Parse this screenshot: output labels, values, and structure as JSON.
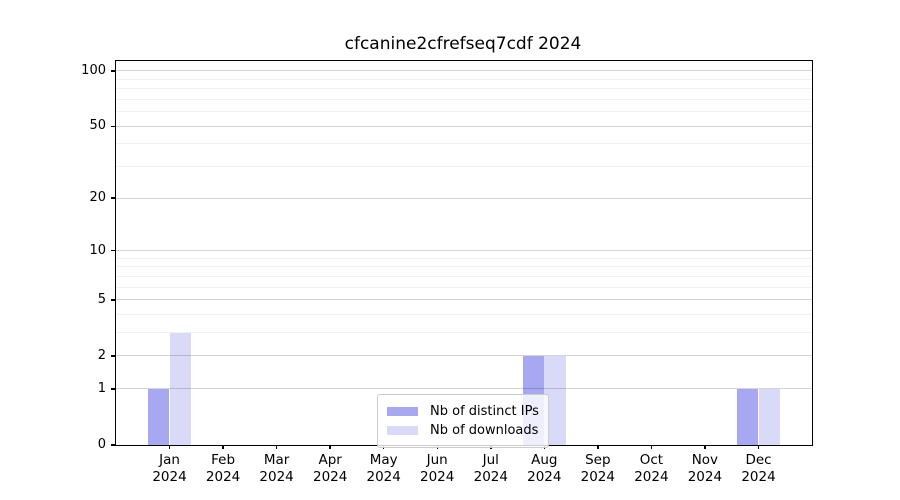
{
  "chart_data": {
    "type": "bar",
    "title": "cfcanine2cfrefseq7cdf 2024",
    "categories": [
      "Jan",
      "Feb",
      "Mar",
      "Apr",
      "May",
      "Jun",
      "Jul",
      "Aug",
      "Sep",
      "Oct",
      "Nov",
      "Dec"
    ],
    "x_year_label": "2024",
    "series": [
      {
        "name": "Nb of distinct IPs",
        "color": "#a8a8f2",
        "values": [
          1,
          0,
          0,
          0,
          0,
          0,
          0,
          2,
          0,
          0,
          0,
          1
        ]
      },
      {
        "name": "Nb of downloads",
        "color": "#d9d9f8",
        "values": [
          3,
          0,
          0,
          0,
          0,
          0,
          0,
          2,
          0,
          0,
          0,
          1
        ]
      }
    ],
    "yscale": "log1p",
    "ylim": [
      0,
      113
    ],
    "y_major_ticks": [
      100,
      50,
      20,
      10,
      5,
      2,
      1,
      0
    ],
    "y_minor_gridlines": [
      90,
      80,
      70,
      60,
      40,
      30,
      9,
      8,
      7,
      6,
      4,
      3
    ],
    "grid": true,
    "legend_position": "lower-center-inside",
    "bar_group_width_fraction": 0.8
  }
}
